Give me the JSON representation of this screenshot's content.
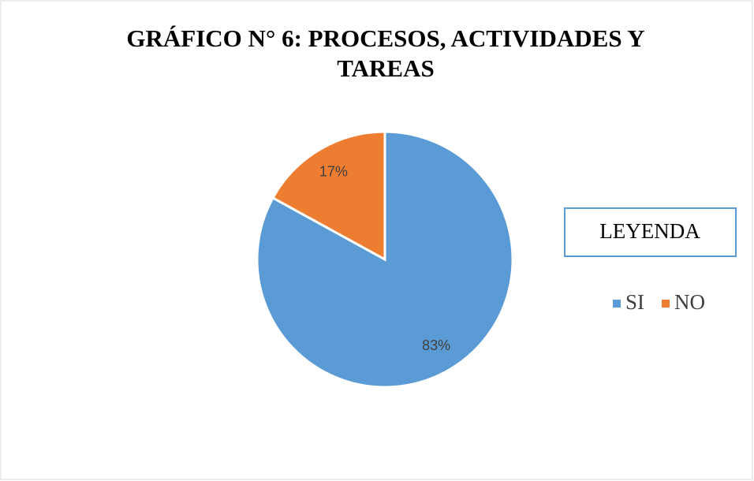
{
  "chart_data": {
    "type": "pie",
    "title": "GRÁFICO N° 6: PROCESOS, ACTIVIDADES Y TAREAS",
    "legend_title": "LEYENDA",
    "categories": [
      "SI",
      "NO"
    ],
    "values": [
      83,
      17
    ],
    "value_labels": [
      "83%",
      "17%"
    ],
    "colors": [
      "#5b9bd5",
      "#ed7d31"
    ],
    "legend": "right"
  }
}
